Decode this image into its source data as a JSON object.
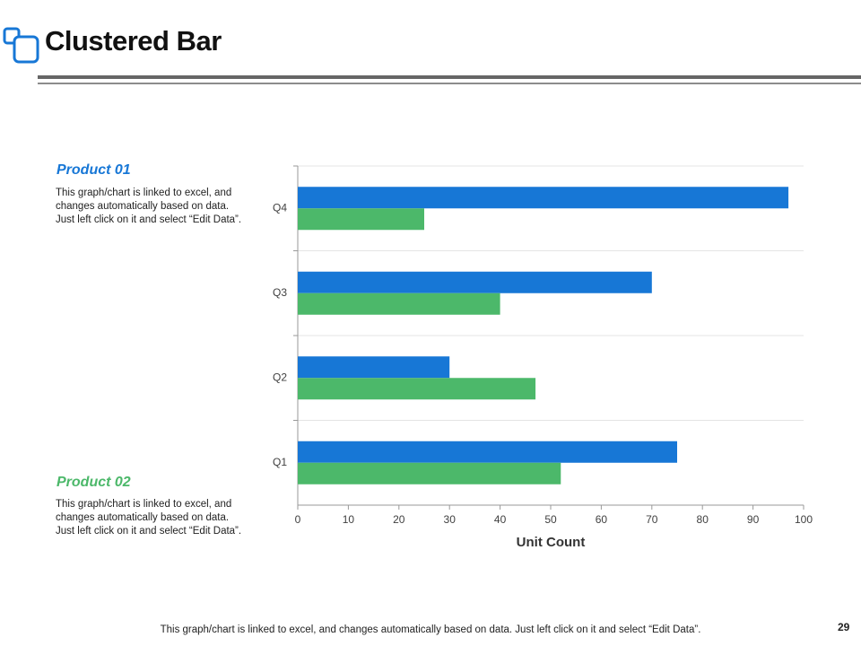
{
  "slide": {
    "title": "Clustered Bar",
    "page_number": "29",
    "footer": "This graph/chart is linked to excel, and changes automatically based on data. Just left click on it and select “Edit Data”.",
    "notes": [
      {
        "text": "This graph/chart is linked to excel, and changes automatically based on data. Just left click on it and select “Edit Data”."
      },
      {
        "text": "This graph/chart is linked to excel, and changes automatically based on data. Just left click on it and select “Edit Data”."
      }
    ]
  },
  "chart_data": {
    "type": "bar",
    "orientation": "horizontal",
    "categories": [
      "Q1",
      "Q2",
      "Q3",
      "Q4"
    ],
    "series": [
      {
        "name": "Product 01",
        "color": "#1777d6",
        "values": [
          75,
          30,
          70,
          97
        ]
      },
      {
        "name": "Product 02",
        "color": "#4cb86a",
        "values": [
          52,
          47,
          40,
          25
        ]
      }
    ],
    "xlabel": "Unit Count",
    "xlim": [
      0,
      100
    ],
    "xticks": [
      0,
      10,
      20,
      30,
      40,
      50,
      60,
      70,
      80,
      90,
      100
    ]
  }
}
